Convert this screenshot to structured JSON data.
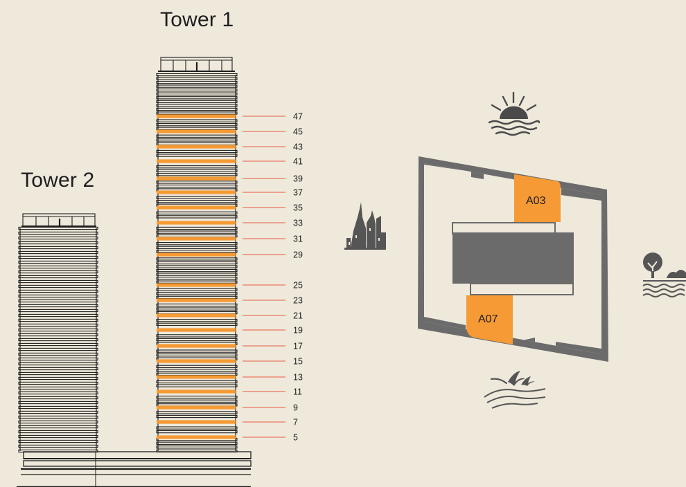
{
  "towers": {
    "tower1": {
      "title": "Tower 1"
    },
    "tower2": {
      "title": "Tower 2"
    }
  },
  "highlighted_floors": [
    "47",
    "45",
    "43",
    "41",
    "39",
    "37",
    "35",
    "33",
    "31",
    "29",
    "25",
    "23",
    "21",
    "19",
    "17",
    "15",
    "13",
    "11",
    "9",
    "7",
    "5"
  ],
  "units": [
    {
      "id": "A03",
      "label": "A03"
    },
    {
      "id": "A07",
      "label": "A07"
    }
  ],
  "icons": [
    "sunrise-over-water-icon",
    "city-skyline-icon",
    "tree-and-water-icon",
    "birds-over-water-icon"
  ],
  "colors": {
    "background": "#efe9dc",
    "highlight": "#f59a34",
    "leader_line": "#e55a3e",
    "plan_fill": "#6b6b6b",
    "line": "#1d1d1d"
  }
}
